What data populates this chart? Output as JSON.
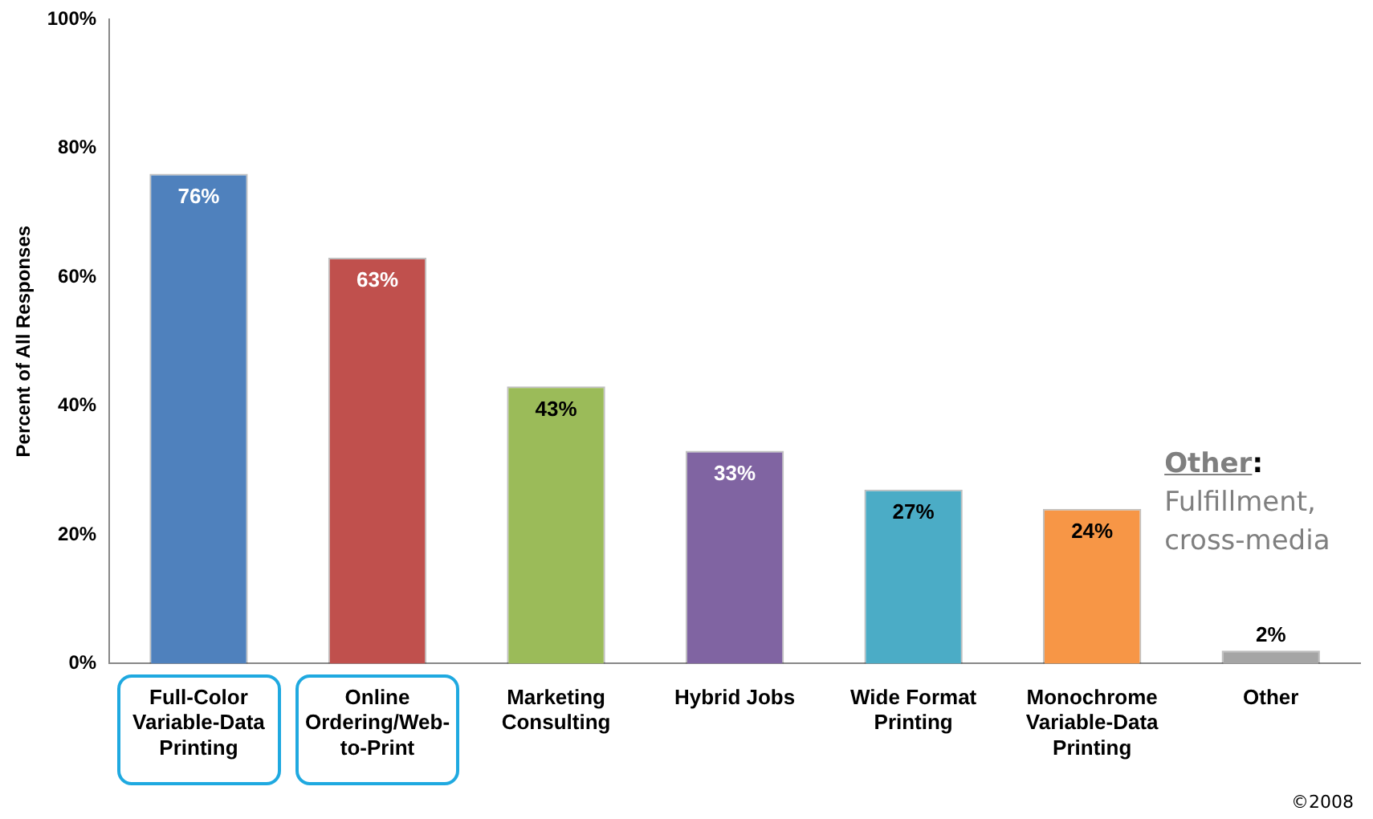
{
  "chart_data": {
    "type": "bar",
    "ylabel": "Percent of All Responses",
    "categories": [
      "Full-Color Variable-Data Printing",
      "Online Ordering/Web-to-Print",
      "Marketing Consulting",
      "Hybrid Jobs",
      "Wide Format Printing",
      "Monochrome Variable-Data Printing",
      "Other"
    ],
    "values": [
      76,
      63,
      43,
      33,
      27,
      24,
      2
    ],
    "colors": [
      "#4f81bd",
      "#c0504d",
      "#9bbb59",
      "#8064a2",
      "#4bacc6",
      "#f79646",
      "#a5a5a5"
    ],
    "value_labels": [
      "76%",
      "63%",
      "43%",
      "33%",
      "27%",
      "24%",
      "2%"
    ],
    "ylim": [
      0,
      100
    ],
    "yticks": [
      {
        "value": 0,
        "label": "0%"
      },
      {
        "value": 20,
        "label": "20%"
      },
      {
        "value": 40,
        "label": "40%"
      },
      {
        "value": 60,
        "label": "60%"
      },
      {
        "value": 80,
        "label": "80%"
      },
      {
        "value": 100,
        "label": "100%"
      }
    ],
    "grid": false,
    "legend": false,
    "annotations": [
      "Other: Fulfillment, cross-media",
      "©2008"
    ]
  }
}
